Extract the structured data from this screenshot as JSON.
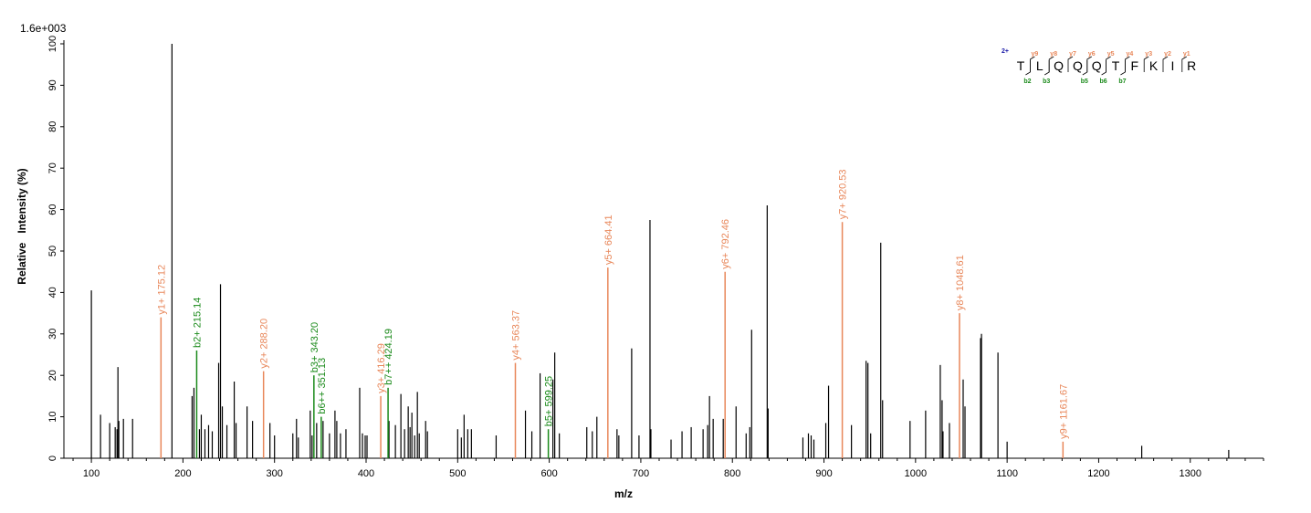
{
  "chart_data": {
    "type": "bar",
    "scale_label": "1.6e+003",
    "xlabel": "m/z",
    "ylabel": "Relative   Intensity (%)",
    "xlim": [
      70,
      1380
    ],
    "ylim": [
      0,
      100
    ],
    "xticks": [
      100,
      200,
      300,
      400,
      500,
      600,
      700,
      800,
      900,
      1000,
      1100,
      1200,
      1300
    ],
    "yticks": [
      0,
      10,
      20,
      30,
      40,
      50,
      60,
      70,
      80,
      90,
      100
    ],
    "colors": {
      "unannotated": "#000000",
      "y_ion": "#e8875a",
      "b_ion": "#1a8a1a",
      "charge": "#1a1aa8"
    },
    "peaks": [
      [
        100,
        40.5
      ],
      [
        110,
        10.5
      ],
      [
        120,
        8.5
      ],
      [
        126,
        7.5
      ],
      [
        128,
        7
      ],
      [
        129,
        22
      ],
      [
        130,
        9
      ],
      [
        135,
        9.5
      ],
      [
        145,
        9.5
      ],
      [
        188,
        100
      ],
      [
        210,
        15
      ],
      [
        212,
        17
      ],
      [
        218,
        7
      ],
      [
        220,
        10.5
      ],
      [
        224,
        7
      ],
      [
        228,
        8
      ],
      [
        232,
        6.5
      ],
      [
        239,
        23
      ],
      [
        241,
        42
      ],
      [
        243,
        12.5
      ],
      [
        248,
        8
      ],
      [
        256,
        18.5
      ],
      [
        258,
        8.5
      ],
      [
        270,
        12.5
      ],
      [
        276,
        9
      ],
      [
        295,
        8.5
      ],
      [
        300,
        5.5
      ],
      [
        320,
        6
      ],
      [
        324,
        9.5
      ],
      [
        326,
        5
      ],
      [
        339,
        11.5
      ],
      [
        341,
        5.5
      ],
      [
        346,
        8.5
      ],
      [
        353,
        9
      ],
      [
        360,
        6
      ],
      [
        366,
        11.5
      ],
      [
        368,
        9
      ],
      [
        372,
        6
      ],
      [
        378,
        7
      ],
      [
        393,
        17
      ],
      [
        396,
        6
      ],
      [
        399,
        5.5
      ],
      [
        401,
        5.5
      ],
      [
        425,
        9
      ],
      [
        432,
        8
      ],
      [
        438,
        15.5
      ],
      [
        442,
        7
      ],
      [
        446,
        12.5
      ],
      [
        448,
        7.5
      ],
      [
        450,
        11
      ],
      [
        453,
        5.5
      ],
      [
        456,
        16
      ],
      [
        458,
        6
      ],
      [
        465,
        9
      ],
      [
        467,
        6.5
      ],
      [
        500,
        7
      ],
      [
        504,
        5
      ],
      [
        507,
        10.5
      ],
      [
        511,
        7
      ],
      [
        515,
        7
      ],
      [
        542,
        5.5
      ],
      [
        574,
        11.5
      ],
      [
        581,
        6.5
      ],
      [
        590,
        20.5
      ],
      [
        604,
        19
      ],
      [
        606,
        25.5
      ],
      [
        611,
        6
      ],
      [
        641,
        7.5
      ],
      [
        647,
        6.5
      ],
      [
        652,
        10
      ],
      [
        674,
        7
      ],
      [
        676,
        5.5
      ],
      [
        690,
        26.5
      ],
      [
        698,
        5.5
      ],
      [
        710,
        57.5
      ],
      [
        711,
        7
      ],
      [
        733,
        4.5
      ],
      [
        745,
        6.5
      ],
      [
        755,
        7.5
      ],
      [
        768,
        7
      ],
      [
        773,
        8
      ],
      [
        775,
        15
      ],
      [
        779,
        9.5
      ],
      [
        790,
        9.5
      ],
      [
        804,
        12.5
      ],
      [
        815,
        6
      ],
      [
        819,
        7.5
      ],
      [
        821,
        31
      ],
      [
        838,
        61
      ],
      [
        839,
        12
      ],
      [
        877,
        5
      ],
      [
        883,
        6
      ],
      [
        886,
        5.5
      ],
      [
        889,
        4.5
      ],
      [
        902,
        8.5
      ],
      [
        905,
        17.5
      ],
      [
        930,
        8
      ],
      [
        946,
        23.5
      ],
      [
        948,
        23
      ],
      [
        951,
        6
      ],
      [
        962,
        52
      ],
      [
        964,
        14
      ],
      [
        994,
        9
      ],
      [
        1011,
        11.5
      ],
      [
        1027,
        22.5
      ],
      [
        1029,
        14
      ],
      [
        1030,
        6.5
      ],
      [
        1037,
        8.5
      ],
      [
        1052,
        19
      ],
      [
        1054,
        12.5
      ],
      [
        1071,
        29
      ],
      [
        1072,
        30
      ],
      [
        1090,
        25.5
      ],
      [
        1100,
        4
      ],
      [
        1247,
        3
      ],
      [
        1342,
        2
      ]
    ],
    "annotated_peaks": [
      {
        "mz": 176,
        "y": 34,
        "ion": "y",
        "label": "y1+ 175.12"
      },
      {
        "mz": 215,
        "y": 26,
        "ion": "b",
        "label": "b2+ 215.14"
      },
      {
        "mz": 288,
        "y": 21,
        "ion": "y",
        "label": "y2+ 288.20"
      },
      {
        "mz": 343,
        "y": 20,
        "ion": "b",
        "label": "b3+ 343.20"
      },
      {
        "mz": 351,
        "y": 10,
        "ion": "b",
        "label": "b6++ 351.13"
      },
      {
        "mz": 416,
        "y": 15,
        "ion": "y",
        "label": "y3+ 416.29"
      },
      {
        "mz": 424,
        "y": 17,
        "ion": "b",
        "label": "b7++ 424.19"
      },
      {
        "mz": 563,
        "y": 23,
        "ion": "y",
        "label": "y4+ 563.37"
      },
      {
        "mz": 599,
        "y": 7,
        "ion": "b",
        "label": "b5+ 599.25"
      },
      {
        "mz": 664,
        "y": 46,
        "ion": "y",
        "label": "y5+ 664.41"
      },
      {
        "mz": 792,
        "y": 45,
        "ion": "y",
        "label": "y6+ 792.46"
      },
      {
        "mz": 920,
        "y": 57,
        "ion": "y",
        "label": "y7+ 920.53"
      },
      {
        "mz": 1048,
        "y": 35,
        "ion": "y",
        "label": "y8+ 1048.61"
      },
      {
        "mz": 1161,
        "y": 4,
        "ion": "y",
        "label": "y9+ 1161.67"
      }
    ]
  },
  "sequence_panel": {
    "charge": "2+",
    "letters": [
      "T",
      "L",
      "Q",
      "Q",
      "Q",
      "T",
      "F",
      "K",
      "I",
      "R"
    ],
    "y_ions": [
      "y9",
      "y8",
      "y7",
      "y6",
      "y5",
      "y4",
      "y3",
      "y2",
      "y1"
    ],
    "b_ions": [
      {
        "label": "b2",
        "after": 1
      },
      {
        "label": "b3",
        "after": 2
      },
      {
        "label": "b5",
        "after": 4
      },
      {
        "label": "b6",
        "after": 5
      },
      {
        "label": "b7",
        "after": 6
      }
    ]
  }
}
